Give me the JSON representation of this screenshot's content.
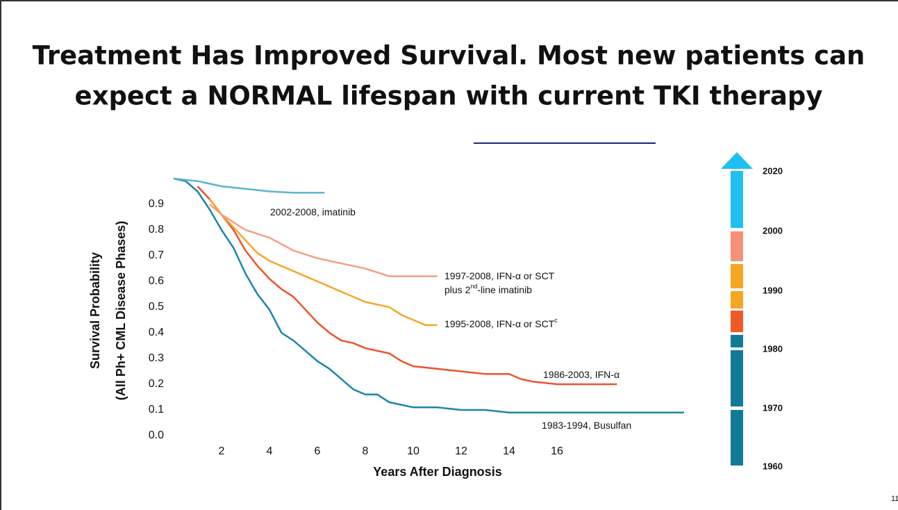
{
  "chart_data": {
    "type": "line",
    "title": [
      "Treatment Has Improved Survival.  Most new patients can",
      "expect a NORMAL lifespan with current TKI therapy"
    ],
    "ylabel": [
      "Survival Probability",
      "(All Ph+ CML Disease Phases)"
    ],
    "xlabel": "Years After Diagnosis",
    "xlim": [
      0,
      21.5
    ],
    "ylim": [
      0,
      1
    ],
    "xticks": [
      2,
      4,
      6,
      8,
      10,
      12,
      14,
      16
    ],
    "yticks": [
      {
        "value": 0,
        "label": "0.0"
      },
      0.1,
      0.2,
      0.3,
      0.4,
      0.5,
      0.6,
      0.7,
      0.8,
      0.9
    ],
    "series": [
      {
        "name": "1983-1994, Busulfan",
        "color": "#1a86a8",
        "x": [
          0,
          0.5,
          1,
          1.5,
          2,
          2.5,
          3,
          3.5,
          4,
          4.5,
          5,
          5.5,
          6,
          6.5,
          7,
          7.5,
          8,
          8.5,
          9,
          9.5,
          10,
          11,
          12,
          13,
          14,
          16,
          18,
          21.3
        ],
        "values": [
          1,
          0.99,
          0.95,
          0.88,
          0.8,
          0.73,
          0.63,
          0.55,
          0.49,
          0.4,
          0.37,
          0.33,
          0.29,
          0.26,
          0.22,
          0.18,
          0.16,
          0.16,
          0.13,
          0.12,
          0.11,
          0.11,
          0.1,
          0.1,
          0.09,
          0.09,
          0.09,
          0.09
        ]
      },
      {
        "name": "1986-2003, IFN-α",
        "color": "#e8542a",
        "x": [
          1,
          1.5,
          2,
          2.5,
          3,
          3.5,
          4,
          4.5,
          5,
          5.5,
          6,
          6.5,
          7,
          7.5,
          8,
          9,
          9.5,
          10,
          11,
          12,
          13,
          14,
          14.5,
          15,
          16,
          18.5
        ],
        "values": [
          0.97,
          0.92,
          0.86,
          0.8,
          0.72,
          0.66,
          0.61,
          0.57,
          0.54,
          0.49,
          0.44,
          0.4,
          0.37,
          0.36,
          0.34,
          0.32,
          0.29,
          0.27,
          0.26,
          0.25,
          0.24,
          0.24,
          0.22,
          0.21,
          0.2,
          0.2
        ]
      },
      {
        "name": "1995-2008, IFN-α or SCT",
        "color": "#f5a623",
        "x": [
          1.5,
          2,
          2.5,
          3,
          3.5,
          4,
          5,
          6,
          7,
          8,
          9,
          9.5,
          10,
          10.5,
          11
        ],
        "values": [
          0.92,
          0.86,
          0.81,
          0.76,
          0.71,
          0.68,
          0.64,
          0.6,
          0.56,
          0.52,
          0.5,
          0.47,
          0.45,
          0.43,
          0.43
        ]
      },
      {
        "name": "1997-2008, IFN-α or SCT",
        "color": "#f4a080",
        "x": [
          1.5,
          2,
          2.5,
          3,
          4,
          5,
          6,
          7,
          8,
          9,
          10,
          11
        ],
        "values": [
          0.9,
          0.86,
          0.83,
          0.8,
          0.77,
          0.72,
          0.69,
          0.67,
          0.65,
          0.62,
          0.62,
          0.62
        ]
      },
      {
        "name": "2002-2008, imatinib",
        "color": "#5ab4d0",
        "x": [
          0,
          0.5,
          1,
          1.5,
          2,
          3,
          4,
          5,
          6.3
        ],
        "values": [
          1,
          0.995,
          0.99,
          0.98,
          0.97,
          0.96,
          0.95,
          0.945,
          0.945
        ]
      }
    ],
    "annotations": [
      [
        {
          "text": "2002-2008, imatinib"
        }
      ],
      [
        {
          "text": "1997-2008, IFN-α or SCT"
        }
      ],
      [
        {
          "text": "plus 2"
        },
        {
          "text": "nd",
          "sup": true
        },
        {
          "text": "-line imatinib"
        }
      ],
      [
        {
          "text": "1995-2008, IFN-α or SCT"
        },
        {
          "text": "c",
          "sup": true
        }
      ],
      [
        {
          "text": "1986-2003, IFN-α"
        }
      ],
      [
        {
          "text": "1983-1994, Busulfan"
        }
      ]
    ],
    "timeline_labels": [
      "2020",
      "2000",
      "1990",
      "1980",
      "1970",
      "1960"
    ],
    "page_number": "11"
  }
}
